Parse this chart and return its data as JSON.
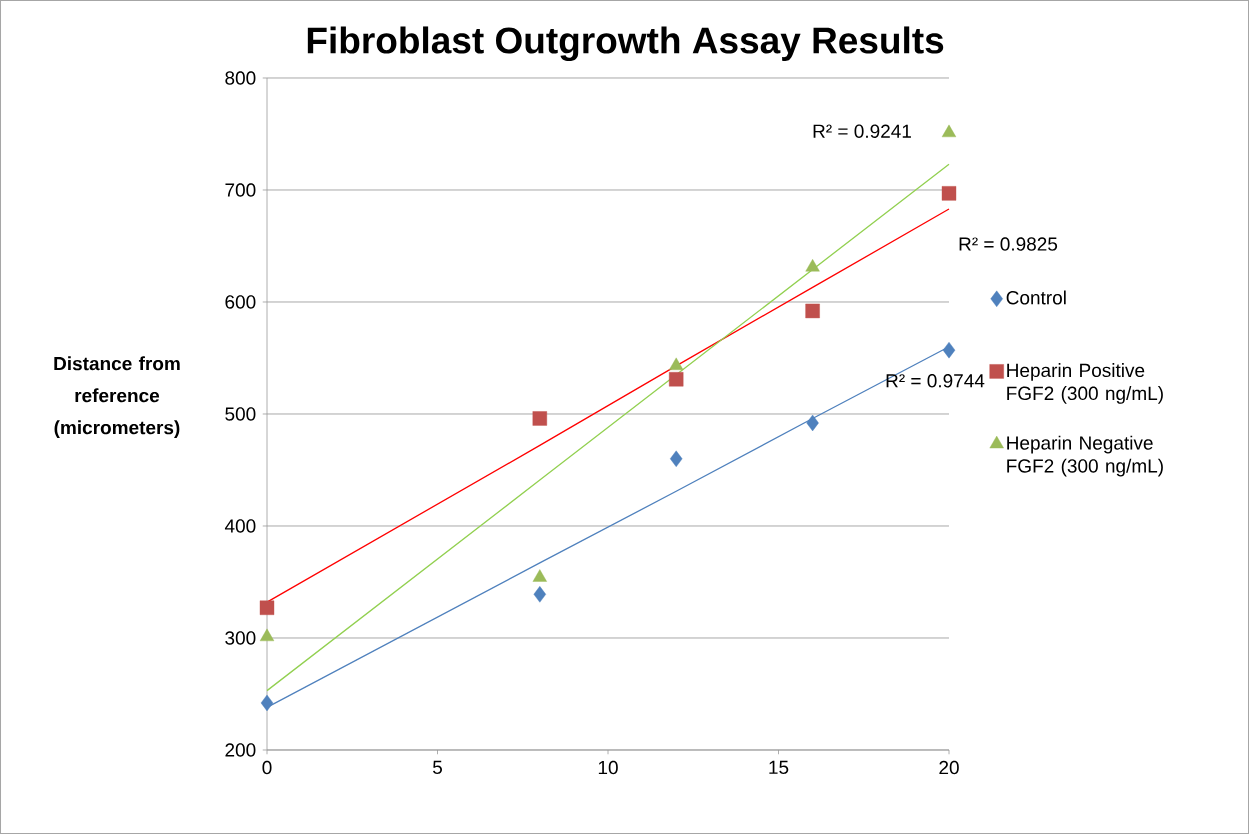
{
  "chart_data": {
    "type": "scatter",
    "title": "Fibroblast Outgrowth Assay Results",
    "ylabel": "Distance from reference (micrometers)",
    "x": [
      0,
      8,
      12,
      16,
      20
    ],
    "series": [
      {
        "name": "Control",
        "color": "#4f81bd",
        "marker": "diamond",
        "values": [
          242,
          339,
          460,
          492,
          557
        ]
      },
      {
        "name": "Heparin Positive FGF2 (300 ng/mL)",
        "color": "#c0504d",
        "marker": "square",
        "values": [
          327,
          496,
          531,
          592,
          697
        ]
      },
      {
        "name": "Heparin Negative FGF2 (300 ng/mL)",
        "color": "#9bbb59",
        "marker": "triangle",
        "values": [
          301,
          354,
          543,
          631,
          751
        ]
      },
      {
        "type": "line",
        "color": "#4f81bd",
        "values": [
          238,
          367,
          431,
          496,
          560
        ]
      },
      {
        "type": "line",
        "color": "#ff0000",
        "values": [
          332,
          472,
          543,
          613,
          683
        ]
      },
      {
        "type": "line",
        "color": "#92d050",
        "values": [
          253,
          441,
          535,
          629,
          723
        ]
      }
    ],
    "annotations": [
      "R² = 0.9241",
      "R² = 0.9825",
      "R² = 0.9744"
    ],
    "xlim": [
      0,
      20
    ],
    "xticks": [
      0,
      5,
      10,
      15,
      20
    ],
    "ylim": [
      200,
      800
    ],
    "yticks": [
      200,
      300,
      400,
      500,
      600,
      700,
      800
    ],
    "grid": "y",
    "legend": "right"
  }
}
